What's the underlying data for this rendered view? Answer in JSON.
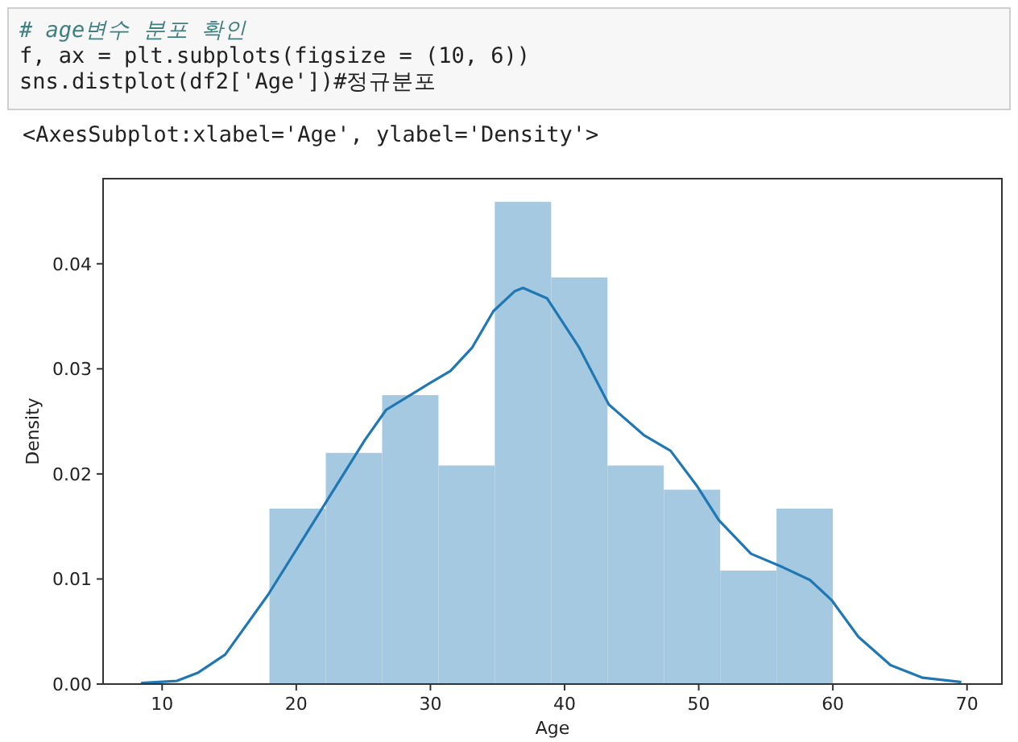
{
  "chart_data": {
    "type": "histogram",
    "xlabel": "Age",
    "ylabel": "Density",
    "annotations": [
      "# age변수 분포 확인",
      "f, ax = plt.subplots(figsize = (10, 6))",
      "sns.distplot(df2['Age'])#정규분포",
      "<AxesSubplot:xlabel='Age', ylabel='Density'>"
    ],
    "bins": [
      18,
      22.2,
      26.4,
      30.6,
      34.8,
      39,
      43.2,
      47.4,
      51.6,
      55.8,
      60
    ],
    "values": [
      0.0167,
      0.022,
      0.0275,
      0.0208,
      0.0459,
      0.0387,
      0.0208,
      0.0185,
      0.0108,
      0.0167
    ],
    "color": "#a5c9e1",
    "series": [
      {
        "type": "line",
        "color": "#1f77b4",
        "x": [
          8.5,
          11.1,
          12.7,
          14.7,
          17.9,
          20.3,
          22.7,
          25.1,
          26.7,
          29.9,
          31.5,
          33.1,
          34.7,
          36.3,
          36.9,
          38.7,
          41.1,
          43.3,
          45.9,
          47.9,
          49.9,
          51.5,
          53.9,
          56.3,
          58.3,
          59.9,
          61.9,
          64.3,
          66.7,
          69.5
        ],
        "values": [
          0.0001,
          0.0003,
          0.0011,
          0.0028,
          0.0085,
          0.0134,
          0.0183,
          0.0232,
          0.0261,
          0.0286,
          0.0298,
          0.032,
          0.0355,
          0.0374,
          0.0377,
          0.0367,
          0.032,
          0.0266,
          0.0237,
          0.0222,
          0.0188,
          0.0156,
          0.0124,
          0.0111,
          0.0099,
          0.008,
          0.0045,
          0.0018,
          0.0006,
          0.0002
        ]
      }
    ],
    "xlim": [
      5.6,
      72.6
    ],
    "ylim": [
      0,
      0.0481
    ],
    "xticks": [
      10,
      20,
      30,
      40,
      50,
      60,
      70
    ],
    "yticks": [
      {
        "value": 0,
        "label": "0.00"
      },
      {
        "value": 0.01,
        "label": "0.01"
      },
      {
        "value": 0.02,
        "label": "0.02"
      },
      {
        "value": 0.03,
        "label": "0.03"
      },
      {
        "value": 0.04,
        "label": "0.04"
      }
    ]
  }
}
